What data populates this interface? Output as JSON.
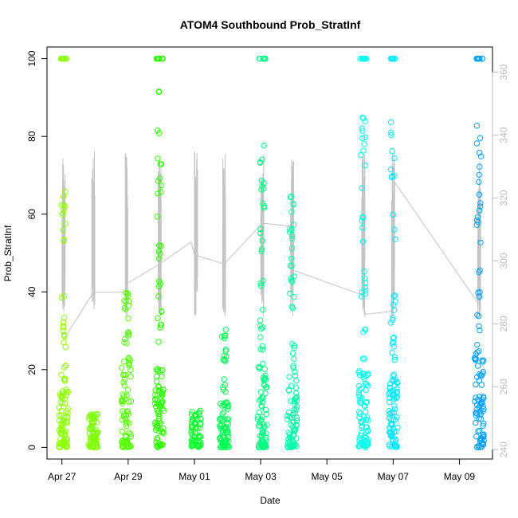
{
  "chart_data": {
    "type": "scatter",
    "title": "ATOM4 Southbound Prob_StratInf",
    "xlabel": "Date",
    "ylabel": "Prob_StratInf",
    "x_ticks": [
      "Apr 27",
      "Apr 29",
      "May 01",
      "May 03",
      "May 05",
      "May 07",
      "May 09"
    ],
    "x_tick_days": [
      0,
      2,
      4,
      6,
      8,
      10,
      12
    ],
    "xlim_days": [
      -0.45,
      13.0
    ],
    "xlim": [
      "Apr 26 13:12",
      "May 10 00:00"
    ],
    "ylim": [
      -3,
      103
    ],
    "y_ticks": [
      0,
      20,
      40,
      60,
      80,
      100
    ],
    "y2_ticks": [
      240,
      260,
      280,
      300,
      320,
      340,
      360
    ],
    "y2lim": [
      237,
      368
    ],
    "y2_color": "#bbbbbb",
    "line_color": "#c4c4c4",
    "grid": false,
    "series": [
      {
        "day": 0.05,
        "color": "#8cff00",
        "low": [
          0,
          15
        ],
        "mid": [
          16,
          40
        ],
        "high": [
          53,
          67
        ],
        "top": 100
      },
      {
        "day": 0.95,
        "color": "#7dff00",
        "low": [
          0,
          9
        ],
        "mid": [],
        "high": [],
        "top": null
      },
      {
        "day": 1.95,
        "color": "#52ff00",
        "low": [
          0,
          25
        ],
        "mid": [
          25,
          40
        ],
        "high": [],
        "top": null
      },
      {
        "day": 2.95,
        "color": "#2eff00",
        "low": [
          0,
          20
        ],
        "mid": [
          20,
          60
        ],
        "high": [
          60,
          93
        ],
        "top": 100
      },
      {
        "day": 4.05,
        "color": "#10ff30",
        "low": [
          0,
          10
        ],
        "mid": [],
        "high": [],
        "top": null
      },
      {
        "day": 4.9,
        "color": "#00ff55",
        "low": [
          0,
          12
        ],
        "mid": [
          12,
          32
        ],
        "high": [],
        "top": null
      },
      {
        "day": 6.05,
        "color": "#00ff80",
        "low": [
          0,
          21
        ],
        "mid": [
          21,
          60
        ],
        "high": [
          60,
          78
        ],
        "top": 100
      },
      {
        "day": 6.95,
        "color": "#00ffa8",
        "low": [
          0,
          20
        ],
        "mid": [
          20,
          50
        ],
        "high": [
          50,
          66
        ],
        "top": null
      },
      {
        "day": 9.1,
        "color": "#00ffec",
        "low": [
          0,
          20
        ],
        "mid": [
          20,
          60
        ],
        "high": [
          60,
          85
        ],
        "top": 100
      },
      {
        "day": 10.0,
        "color": "#00e8ff",
        "low": [
          0,
          18
        ],
        "mid": [
          18,
          40
        ],
        "high": [
          40,
          84
        ],
        "top": 100
      },
      {
        "day": 12.6,
        "color": "#00a0ff",
        "low": [
          0,
          24
        ],
        "mid": [
          24,
          60
        ],
        "high": [
          60,
          91
        ],
        "top": 100
      }
    ],
    "secondary_line": [
      {
        "day": 0.05,
        "y2": 275
      },
      {
        "day": 0.95,
        "y2": 290
      },
      {
        "day": 1.95,
        "y2": 290
      },
      {
        "day": 2.0,
        "y2": 293
      },
      {
        "day": 2.95,
        "y2": 299
      },
      {
        "day": 3.9,
        "y2": 306
      },
      {
        "day": 4.0,
        "y2": 302
      },
      {
        "day": 4.9,
        "y2": 299
      },
      {
        "day": 6.05,
        "y2": 312
      },
      {
        "day": 6.95,
        "y2": 311
      },
      {
        "day": 7.0,
        "y2": 297
      },
      {
        "day": 9.1,
        "y2": 289
      },
      {
        "day": 9.15,
        "y2": 283
      },
      {
        "day": 10.0,
        "y2": 284
      },
      {
        "day": 10.05,
        "y2": 325
      },
      {
        "day": 12.6,
        "y2": 286
      }
    ]
  }
}
